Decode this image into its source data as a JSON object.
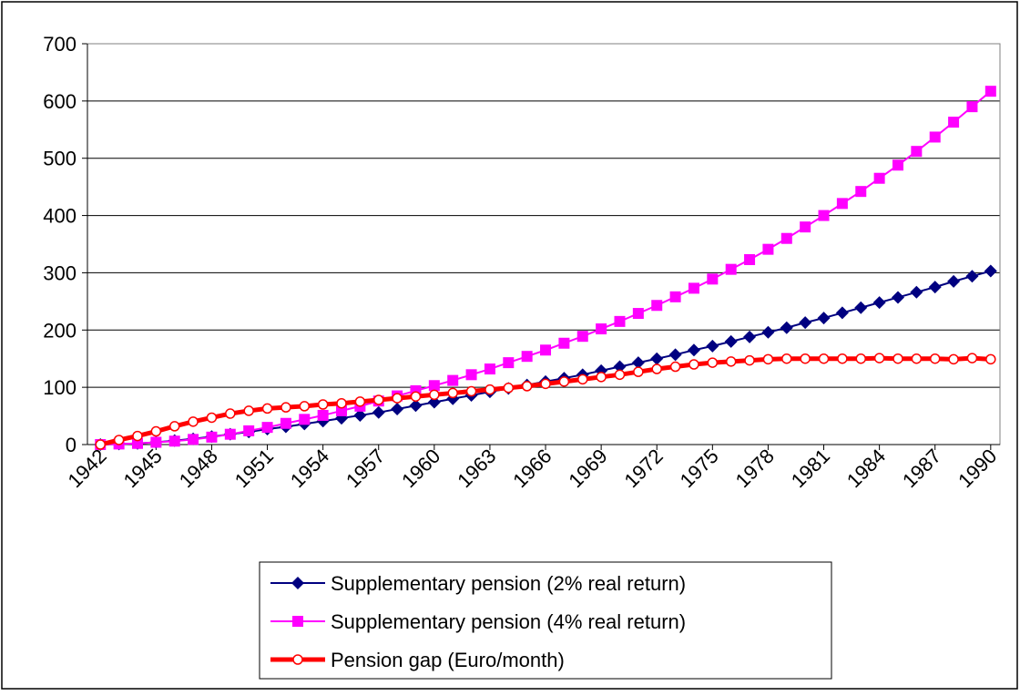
{
  "chart_data": {
    "type": "line",
    "x": [
      1942,
      1943,
      1944,
      1945,
      1946,
      1947,
      1948,
      1949,
      1950,
      1951,
      1952,
      1953,
      1954,
      1955,
      1956,
      1957,
      1958,
      1959,
      1960,
      1961,
      1962,
      1963,
      1964,
      1965,
      1966,
      1967,
      1968,
      1969,
      1970,
      1971,
      1972,
      1973,
      1974,
      1975,
      1976,
      1977,
      1978,
      1979,
      1980,
      1981,
      1982,
      1983,
      1984,
      1985,
      1986,
      1987,
      1988,
      1989,
      1990
    ],
    "xlim": [
      1941.3,
      1990.5
    ],
    "xticks": [
      1942,
      1945,
      1948,
      1951,
      1954,
      1957,
      1960,
      1963,
      1966,
      1969,
      1972,
      1975,
      1978,
      1981,
      1984,
      1987,
      1990
    ],
    "ylim": [
      0,
      700
    ],
    "yticks": [
      0,
      100,
      200,
      300,
      400,
      500,
      600,
      700
    ],
    "grid": true,
    "legend": "bottom",
    "series": [
      {
        "name": "Supplementary pension (2% real return)",
        "color": "#000080",
        "marker": "diamond",
        "values": [
          0,
          1,
          2,
          4,
          7,
          10,
          14,
          18,
          22,
          27,
          31,
          36,
          41,
          46,
          51,
          56,
          62,
          68,
          74,
          80,
          86,
          92,
          98,
          104,
          110,
          116,
          122,
          129,
          136,
          143,
          150,
          157,
          165,
          172,
          180,
          188,
          196,
          204,
          213,
          221,
          230,
          239,
          248,
          257,
          266,
          275,
          285,
          294,
          303
        ]
      },
      {
        "name": "Supplementary pension (4% real return)",
        "color": "#ff00ff",
        "marker": "square",
        "values": [
          0,
          1,
          2,
          4,
          6,
          9,
          13,
          18,
          24,
          30,
          37,
          44,
          51,
          59,
          67,
          76,
          85,
          94,
          103,
          112,
          122,
          132,
          143,
          154,
          165,
          177,
          189,
          202,
          215,
          229,
          243,
          258,
          273,
          289,
          306,
          323,
          341,
          360,
          380,
          400,
          421,
          442,
          465,
          488,
          512,
          537,
          563,
          590,
          617
        ]
      },
      {
        "name": "Pension gap (Euro/month)",
        "color": "#ff0000",
        "marker": "circle",
        "values": [
          0,
          8,
          15,
          23,
          32,
          40,
          47,
          54,
          59,
          63,
          65,
          67,
          70,
          72,
          75,
          78,
          81,
          84,
          87,
          90,
          93,
          96,
          99,
          102,
          106,
          110,
          114,
          118,
          122,
          127,
          132,
          136,
          140,
          143,
          145,
          147,
          149,
          150,
          150,
          150,
          150,
          150,
          151,
          150,
          150,
          150,
          149,
          151,
          149
        ]
      }
    ]
  }
}
